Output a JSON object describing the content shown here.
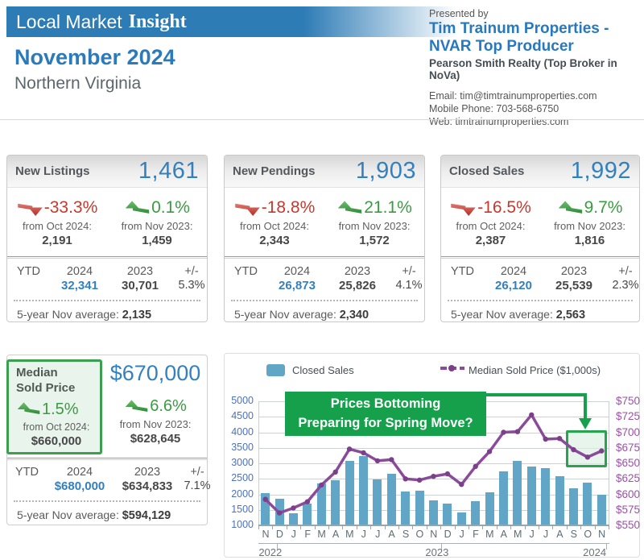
{
  "brand": {
    "title_regular": "Local Market",
    "title_serif": "Insight"
  },
  "report": {
    "month": "November 2024",
    "region": "Northern Virginia"
  },
  "presenter": {
    "label": "Presented by",
    "name_line1": "Tim Trainum Properties -",
    "name_line2": "NVAR Top Producer",
    "company": "Pearson Smith Realty (Top Broker in NoVa)",
    "email": "Email: tim@timtrainumproperties.com",
    "phone": "Mobile Phone: 703-568-6750",
    "web": "Web: timtrainumproperties.com"
  },
  "cards": [
    {
      "title": "New Listings",
      "value": "1,461",
      "mom_pct": "-33.3%",
      "mom_label": "from Oct 2024:",
      "mom_value": "2,191",
      "yoy_pct": "0.1%",
      "yoy_label": "from Nov 2023:",
      "yoy_value": "1,459",
      "ytd_label": "YTD",
      "col_2024": "2024",
      "col_2023": "2023",
      "col_diff": "+/-",
      "ytd_2024": "32,341",
      "ytd_2023": "30,701",
      "ytd_diff": "5.3%",
      "avg_label": "5-year Nov average:",
      "avg_value": "2,135"
    },
    {
      "title": "New Pendings",
      "value": "1,903",
      "mom_pct": "-18.8%",
      "mom_label": "from Oct 2024:",
      "mom_value": "2,343",
      "yoy_pct": "21.1%",
      "yoy_label": "from Nov 2023:",
      "yoy_value": "1,572",
      "ytd_label": "YTD",
      "col_2024": "2024",
      "col_2023": "2023",
      "col_diff": "+/-",
      "ytd_2024": "26,873",
      "ytd_2023": "25,826",
      "ytd_diff": "4.1%",
      "avg_label": "5-year Nov average:",
      "avg_value": "2,340"
    },
    {
      "title": "Closed Sales",
      "value": "1,992",
      "mom_pct": "-16.5%",
      "mom_label": "from Oct 2024:",
      "mom_value": "2,387",
      "yoy_pct": "9.7%",
      "yoy_label": "from Nov 2023:",
      "yoy_value": "1,816",
      "ytd_label": "YTD",
      "col_2024": "2024",
      "col_2023": "2023",
      "col_diff": "+/-",
      "ytd_2024": "26,120",
      "ytd_2023": "25,539",
      "ytd_diff": "2.3%",
      "avg_label": "5-year Nov average:",
      "avg_value": "2,563"
    }
  ],
  "median_card": {
    "title_line1": "Median",
    "title_line2": "Sold Price",
    "value": "$670,000",
    "mom_pct": "1.5%",
    "mom_label": "from Oct 2024:",
    "mom_value": "$660,000",
    "yoy_pct": "6.6%",
    "yoy_label": "from Nov 2023:",
    "yoy_value": "$628,645",
    "ytd_label": "YTD",
    "col_2024": "2024",
    "col_2023": "2023",
    "col_diff": "+/-",
    "ytd_2024": "$680,000",
    "ytd_2023": "$634,833",
    "ytd_diff": "7.1%",
    "avg_label": "5-year Nov average:",
    "avg_value": "$594,129"
  },
  "chart_data": {
    "type": "bar+line",
    "title": "",
    "legend": [
      {
        "label": "Closed Sales",
        "color": "#61A6C6",
        "marker": "square"
      },
      {
        "label": "Median Sold Price ($1,000s)",
        "color": "#8B4B9B",
        "marker": "line-dot"
      }
    ],
    "months": [
      "N",
      "D",
      "J",
      "F",
      "M",
      "A",
      "M",
      "J",
      "J",
      "A",
      "S",
      "O",
      "N",
      "D",
      "J",
      "F",
      "M",
      "A",
      "M",
      "J",
      "J",
      "A",
      "S",
      "O",
      "N"
    ],
    "years": [
      "2022",
      "2023",
      "2024"
    ],
    "left_axis": {
      "min": 1000,
      "max": 5000,
      "step": 500
    },
    "right_axis": {
      "min": 550,
      "max": 750,
      "step": 25,
      "prefix": "$"
    },
    "series": [
      {
        "name": "Closed Sales",
        "axis": "left",
        "type": "bar",
        "values": [
          2050,
          1850,
          1400,
          1700,
          2350,
          2450,
          3070,
          3240,
          2490,
          2670,
          2080,
          2120,
          1816,
          1690,
          1410,
          1780,
          2060,
          2730,
          3080,
          2900,
          2840,
          2580,
          2190,
          2387,
          1992
        ]
      },
      {
        "name": "Median Sold Price ($1,000s)",
        "axis": "right",
        "type": "line",
        "values": [
          592,
          570,
          578,
          588,
          615,
          636,
          673,
          667,
          654,
          656,
          625,
          623,
          629,
          633,
          616,
          645,
          669,
          700,
          701,
          728,
          689,
          690,
          672,
          660,
          670
        ]
      }
    ],
    "annotation": {
      "line1": "Prices Bottoming",
      "line2": "Preparing for Spring Move?"
    },
    "colors": {
      "bar": "#61A6C6",
      "line": "#8B4B9B",
      "dot": "#7B3F8C",
      "annotation": "#17A04B",
      "highlight_border": "#28A350"
    }
  }
}
